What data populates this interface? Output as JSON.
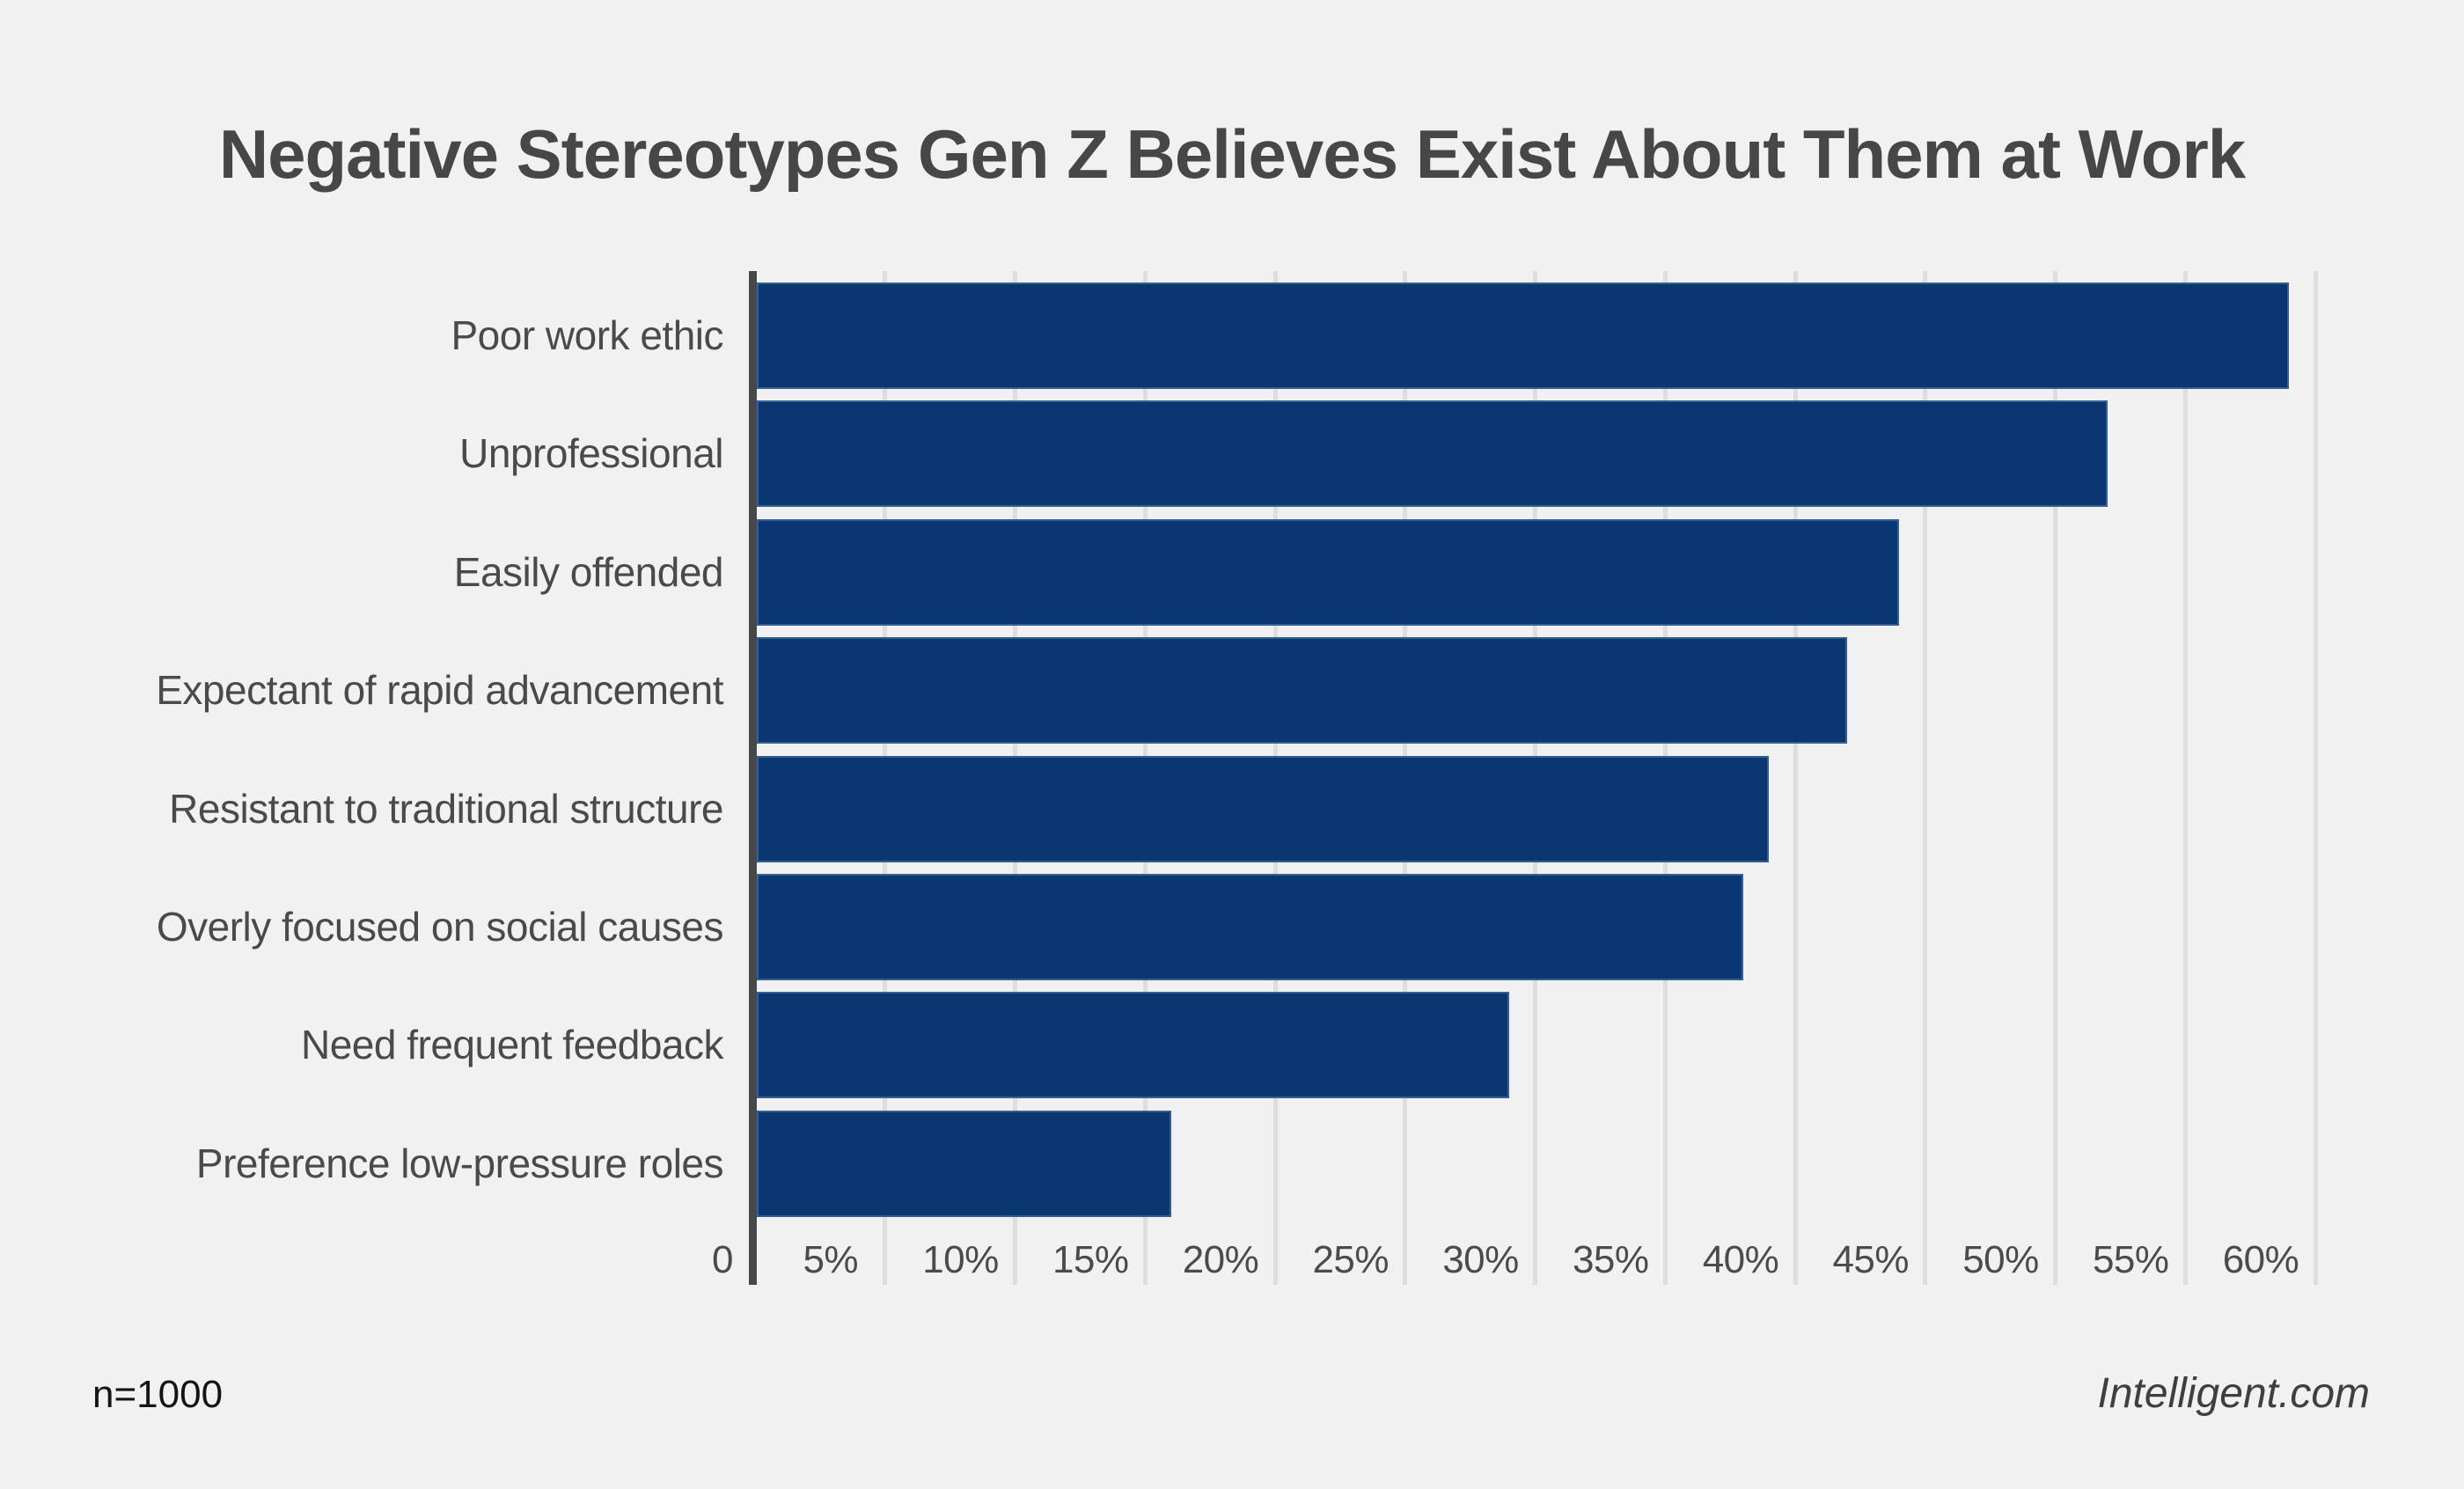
{
  "title": "Negative Stereotypes Gen Z Believes Exist About Them at Work",
  "footer": {
    "sample_size": "n=1000",
    "source": "Intelligent.com"
  },
  "colors": {
    "background": "#f1f1f2",
    "bar_fill": "#0a3772",
    "bar_stroke": "#33608f",
    "axis_line": "#47484a",
    "gridline": "#dedede",
    "title_text": "#474747",
    "label_text": "#4a4a4a",
    "tick_text": "#4b4b4b",
    "source_text": "#3f3f3f"
  },
  "chart_data": {
    "type": "bar",
    "orientation": "horizontal",
    "title": "Negative Stereotypes Gen Z Believes Exist About Them at Work",
    "categories": [
      "Poor work ethic",
      "Unprofessional",
      "Easily offended",
      "Expectant of rapid advancement",
      "Resistant to traditional structure",
      "Overly focused on social causes",
      "Need frequent feedback",
      "Preference low-pressure roles"
    ],
    "values": [
      59,
      52,
      44,
      42,
      39,
      38,
      29,
      16
    ],
    "unit": "%",
    "xlabel": "",
    "ylabel": "",
    "x_axis": {
      "min": 0,
      "max": 60,
      "tick_step": 5,
      "tick_labels": [
        "0",
        "5%",
        "10%",
        "15%",
        "20%",
        "25%",
        "30%",
        "35%",
        "40%",
        "45%",
        "50%",
        "55%",
        "60%"
      ]
    },
    "grid": true,
    "legend": false,
    "annotations": []
  }
}
